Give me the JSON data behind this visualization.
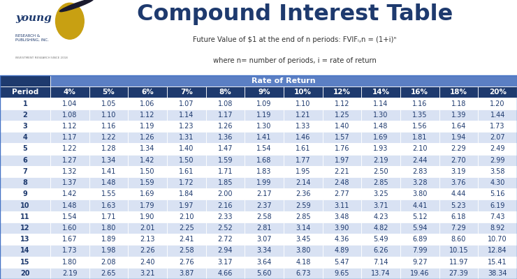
{
  "title": "Compound Interest Table",
  "subtitle1": "Future Value of $1 at the end of n periods: FVIFᵢ,n = (1+i)ⁿ",
  "subtitle2": "where n= number of periods, i = rate of return",
  "header_rate": "Rate of Return",
  "col_headers": [
    "Period",
    "4%",
    "5%",
    "6%",
    "7%",
    "8%",
    "9%",
    "10%",
    "12%",
    "14%",
    "16%",
    "18%",
    "20%"
  ],
  "rows": [
    [
      1,
      1.04,
      1.05,
      1.06,
      1.07,
      1.08,
      1.09,
      1.1,
      1.12,
      1.14,
      1.16,
      1.18,
      1.2
    ],
    [
      2,
      1.08,
      1.1,
      1.12,
      1.14,
      1.17,
      1.19,
      1.21,
      1.25,
      1.3,
      1.35,
      1.39,
      1.44
    ],
    [
      3,
      1.12,
      1.16,
      1.19,
      1.23,
      1.26,
      1.3,
      1.33,
      1.4,
      1.48,
      1.56,
      1.64,
      1.73
    ],
    [
      4,
      1.17,
      1.22,
      1.26,
      1.31,
      1.36,
      1.41,
      1.46,
      1.57,
      1.69,
      1.81,
      1.94,
      2.07
    ],
    [
      5,
      1.22,
      1.28,
      1.34,
      1.4,
      1.47,
      1.54,
      1.61,
      1.76,
      1.93,
      2.1,
      2.29,
      2.49
    ],
    [
      6,
      1.27,
      1.34,
      1.42,
      1.5,
      1.59,
      1.68,
      1.77,
      1.97,
      2.19,
      2.44,
      2.7,
      2.99
    ],
    [
      7,
      1.32,
      1.41,
      1.5,
      1.61,
      1.71,
      1.83,
      1.95,
      2.21,
      2.5,
      2.83,
      3.19,
      3.58
    ],
    [
      8,
      1.37,
      1.48,
      1.59,
      1.72,
      1.85,
      1.99,
      2.14,
      2.48,
      2.85,
      3.28,
      3.76,
      4.3
    ],
    [
      9,
      1.42,
      1.55,
      1.69,
      1.84,
      2.0,
      2.17,
      2.36,
      2.77,
      3.25,
      3.8,
      4.44,
      5.16
    ],
    [
      10,
      1.48,
      1.63,
      1.79,
      1.97,
      2.16,
      2.37,
      2.59,
      3.11,
      3.71,
      4.41,
      5.23,
      6.19
    ],
    [
      11,
      1.54,
      1.71,
      1.9,
      2.1,
      2.33,
      2.58,
      2.85,
      3.48,
      4.23,
      5.12,
      6.18,
      7.43
    ],
    [
      12,
      1.6,
      1.8,
      2.01,
      2.25,
      2.52,
      2.81,
      3.14,
      3.9,
      4.82,
      5.94,
      7.29,
      8.92
    ],
    [
      13,
      1.67,
      1.89,
      2.13,
      2.41,
      2.72,
      3.07,
      3.45,
      4.36,
      5.49,
      6.89,
      8.6,
      10.7
    ],
    [
      14,
      1.73,
      1.98,
      2.26,
      2.58,
      2.94,
      3.34,
      3.8,
      4.89,
      6.26,
      7.99,
      10.15,
      12.84
    ],
    [
      15,
      1.8,
      2.08,
      2.4,
      2.76,
      3.17,
      3.64,
      4.18,
      5.47,
      7.14,
      9.27,
      11.97,
      15.41
    ],
    [
      20,
      2.19,
      2.65,
      3.21,
      3.87,
      4.66,
      5.6,
      6.73,
      9.65,
      13.74,
      19.46,
      27.39,
      38.34
    ]
  ],
  "bg_color": "#ffffff",
  "rate_header_color": "#5b7fc4",
  "col_header_bg": "#1e3a6e",
  "row_even_bg": "#d9e2f3",
  "row_odd_bg": "#ffffff",
  "text_color": "#1e3a6e",
  "title_color": "#1e3a6e",
  "subtitle_color": "#333333",
  "logo_text_color": "#1e3a6e",
  "bird_color": "#c8a012"
}
